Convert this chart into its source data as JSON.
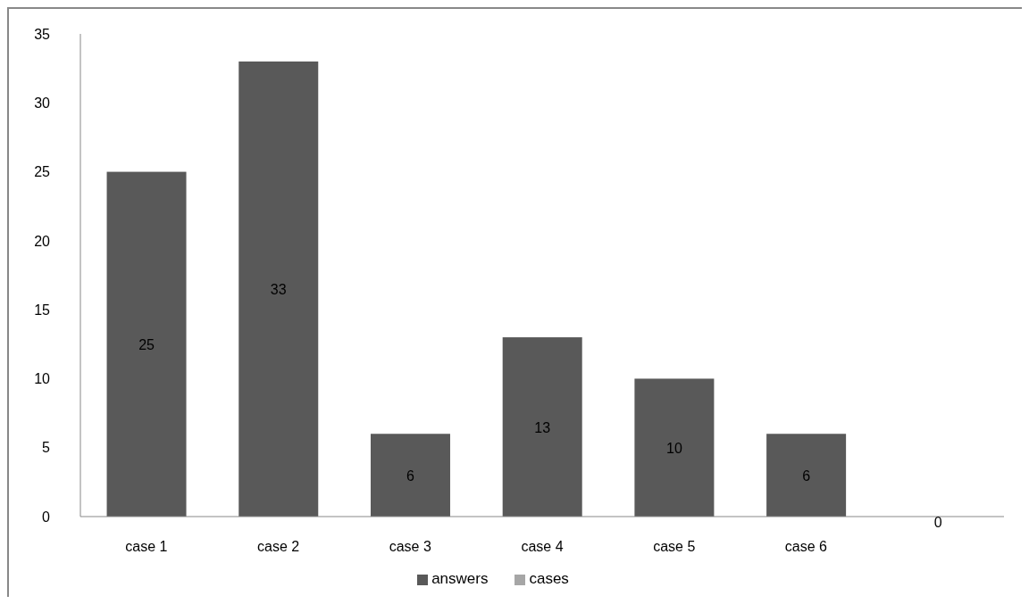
{
  "chart_data": {
    "type": "bar",
    "categories": [
      "case 1",
      "case  2",
      "case 3",
      "case 4",
      "case 5",
      "case 6",
      null
    ],
    "series": [
      {
        "name": "answers",
        "color": "#595959",
        "values": [
          25,
          33,
          6,
          13,
          10,
          6,
          0
        ]
      },
      {
        "name": "cases",
        "color": "#a6a6a6",
        "values": [
          null,
          null,
          null,
          null,
          null,
          null,
          null
        ]
      }
    ],
    "ylim": [
      0,
      35
    ],
    "yticks": [
      0,
      5,
      10,
      15,
      20,
      25,
      30,
      35
    ],
    "grid": false,
    "legend": "bottom",
    "data_labels": true
  }
}
